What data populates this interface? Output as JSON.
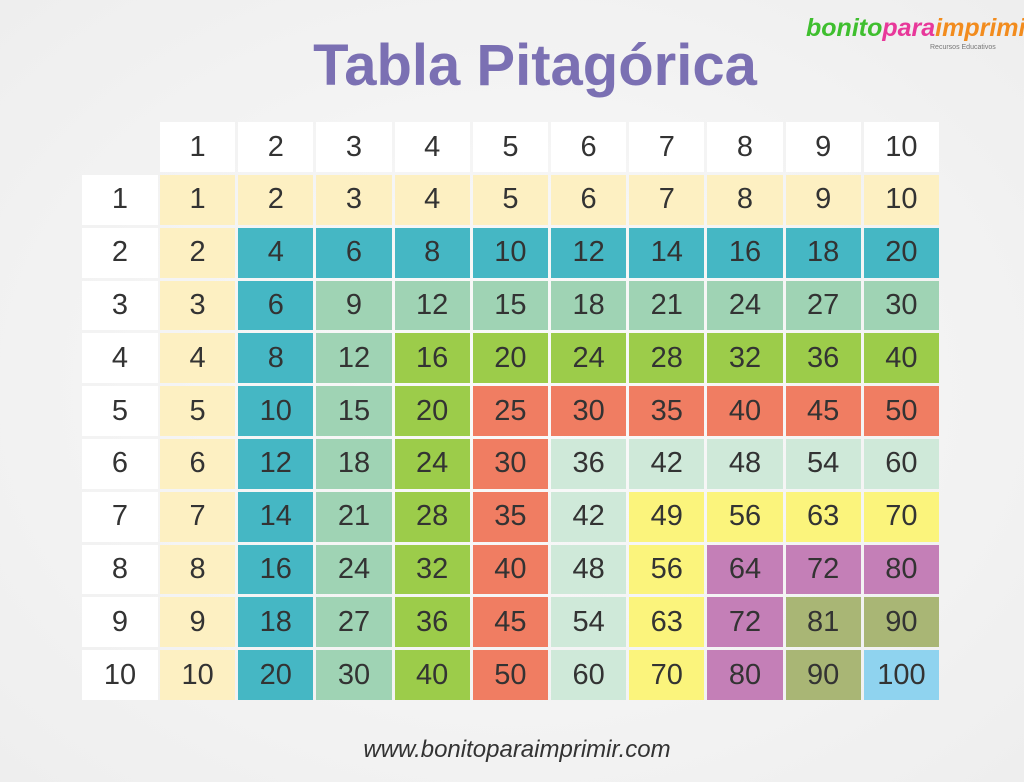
{
  "header": {
    "title": "Tabla Pitagórica",
    "logo": {
      "parts": [
        "bonito",
        "para",
        "imprimir"
      ],
      "colors": [
        "#3fbf2f",
        "#e8389a",
        "#f28c1e"
      ],
      "tagline": "Recursos Educativos"
    }
  },
  "table": {
    "column_headers": [
      1,
      2,
      3,
      4,
      5,
      6,
      7,
      8,
      9,
      10
    ],
    "row_headers": [
      1,
      2,
      3,
      4,
      5,
      6,
      7,
      8,
      9,
      10
    ],
    "rows": [
      [
        1,
        2,
        3,
        4,
        5,
        6,
        7,
        8,
        9,
        10
      ],
      [
        2,
        4,
        6,
        8,
        10,
        12,
        14,
        16,
        18,
        20
      ],
      [
        3,
        6,
        9,
        12,
        15,
        18,
        21,
        24,
        27,
        30
      ],
      [
        4,
        8,
        12,
        16,
        20,
        24,
        28,
        32,
        36,
        40
      ],
      [
        5,
        10,
        15,
        20,
        25,
        30,
        35,
        40,
        45,
        50
      ],
      [
        6,
        12,
        18,
        24,
        30,
        36,
        42,
        48,
        54,
        60
      ],
      [
        7,
        14,
        21,
        28,
        35,
        42,
        49,
        56,
        63,
        70
      ],
      [
        8,
        16,
        24,
        32,
        40,
        48,
        56,
        64,
        72,
        80
      ],
      [
        9,
        18,
        27,
        36,
        45,
        54,
        63,
        72,
        81,
        90
      ],
      [
        10,
        20,
        30,
        40,
        50,
        60,
        70,
        80,
        90,
        100
      ]
    ],
    "colors": [
      "#fdf0c2",
      "#45b7c4",
      "#9fd3b4",
      "#9ccc4a",
      "#f07d62",
      "#cfe9d9",
      "#fbf47c",
      "#c47fb7",
      "#a9b675",
      "#8fd3ef"
    ]
  },
  "footer": {
    "url": "www.bonitoparaimprimir.com"
  }
}
